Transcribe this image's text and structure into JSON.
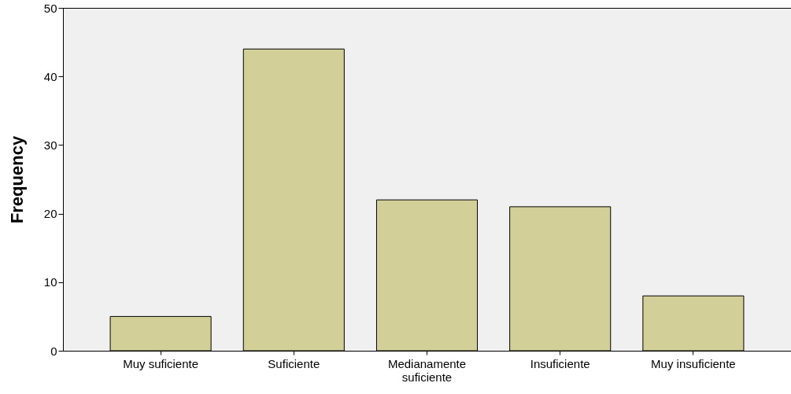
{
  "chart_data": {
    "type": "bar",
    "ylabel": "Frequency",
    "categories": [
      "Muy suficiente",
      "Suficiente",
      "Medianamente suficiente",
      "Insuficiente",
      "Muy insuficiente"
    ],
    "values": [
      5,
      44,
      22,
      21,
      8
    ],
    "color": "#d3cf98",
    "ylim": [
      0,
      50
    ],
    "yticks": [
      0,
      10,
      20,
      30,
      40,
      50
    ],
    "grid": false
  }
}
